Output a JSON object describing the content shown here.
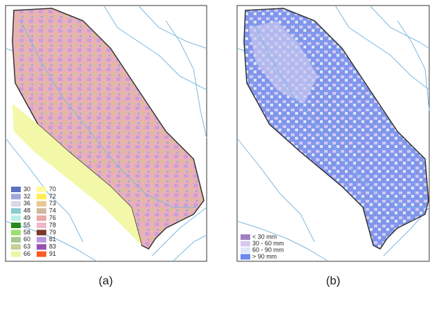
{
  "panel_a": {
    "caption": "(a)",
    "legend": [
      {
        "label": "30",
        "color": "#5b6fc4"
      },
      {
        "label": "32",
        "color": "#a0a8d8"
      },
      {
        "label": "36",
        "color": "#d8d8e8"
      },
      {
        "label": "48",
        "color": "#88cccc"
      },
      {
        "label": "49",
        "color": "#b8f0e8"
      },
      {
        "label": "55",
        "color": "#2a8a1a"
      },
      {
        "label": "58",
        "color": "#98e070"
      },
      {
        "label": "60",
        "color": "#a8c890"
      },
      {
        "label": "63",
        "color": "#c8d098"
      },
      {
        "label": "66",
        "color": "#e8f8a8"
      },
      {
        "label": "70",
        "color": "#fffaa0"
      },
      {
        "label": "72",
        "color": "#ffee55"
      },
      {
        "label": "73",
        "color": "#e8c890"
      },
      {
        "label": "74",
        "color": "#d0b8a0"
      },
      {
        "label": "76",
        "color": "#e8a8a8"
      },
      {
        "label": "78",
        "color": "#f0b8c8"
      },
      {
        "label": "79",
        "color": "#7a3a2a"
      },
      {
        "label": "81",
        "color": "#b898e0"
      },
      {
        "label": "83",
        "color": "#9a50b0"
      },
      {
        "label": "91",
        "color": "#ff5a20"
      }
    ]
  },
  "panel_b": {
    "caption": "(b)",
    "legend": [
      {
        "label": "< 30 mm",
        "color": "#a080c0"
      },
      {
        "label": "30 - 60 mm",
        "color": "#d8c8f0"
      },
      {
        "label": "60 - 90 mm",
        "color": "#dde8f8"
      },
      {
        "label": "> 90 mm",
        "color": "#6a88f0"
      }
    ]
  }
}
